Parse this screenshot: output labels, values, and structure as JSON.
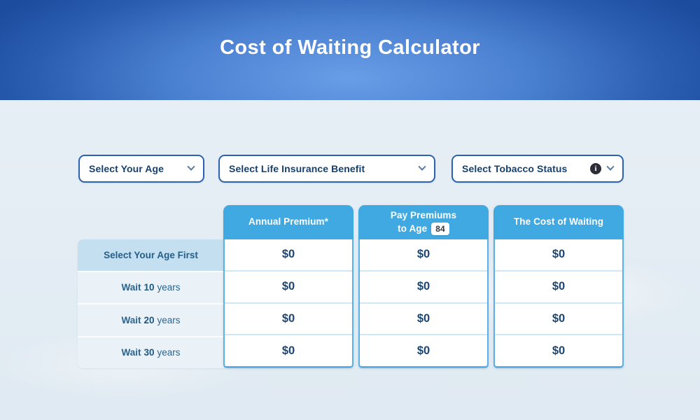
{
  "header": {
    "title": "Cost of Waiting Calculator"
  },
  "filters": {
    "age": {
      "label": "Select Your Age"
    },
    "benefit": {
      "label": "Select Life Insurance Benefit"
    },
    "tobacco": {
      "label": "Select Tobacco Status",
      "info_icon_glyph": "i"
    }
  },
  "table": {
    "rows": [
      {
        "label": "Select Your Age First"
      },
      {
        "prefix": "Wait",
        "number": "10",
        "suffix": "years"
      },
      {
        "prefix": "Wait",
        "number": "20",
        "suffix": "years"
      },
      {
        "prefix": "Wait",
        "number": "30",
        "suffix": "years"
      }
    ],
    "columns": [
      {
        "header": "Annual Premium*",
        "values": [
          "$0",
          "$0",
          "$0",
          "$0"
        ]
      },
      {
        "header_line1": "Pay Premiums",
        "header_line2": "to Age",
        "age_badge": "84",
        "values": [
          "$0",
          "$0",
          "$0",
          "$0"
        ]
      },
      {
        "header": "The Cost of Waiting",
        "values": [
          "$0",
          "$0",
          "$0",
          "$0"
        ]
      }
    ]
  },
  "colors": {
    "banner_center": "#689de7",
    "banner_edge": "#1b4c9e",
    "table_header_bg": "#41a9e2",
    "card_border": "#5ab1e6",
    "label_row_active_bg": "#c3dff0",
    "label_row_bg": "#eaf1f7",
    "dropdown_border": "#2c63ae",
    "value_text": "#1b4673"
  }
}
